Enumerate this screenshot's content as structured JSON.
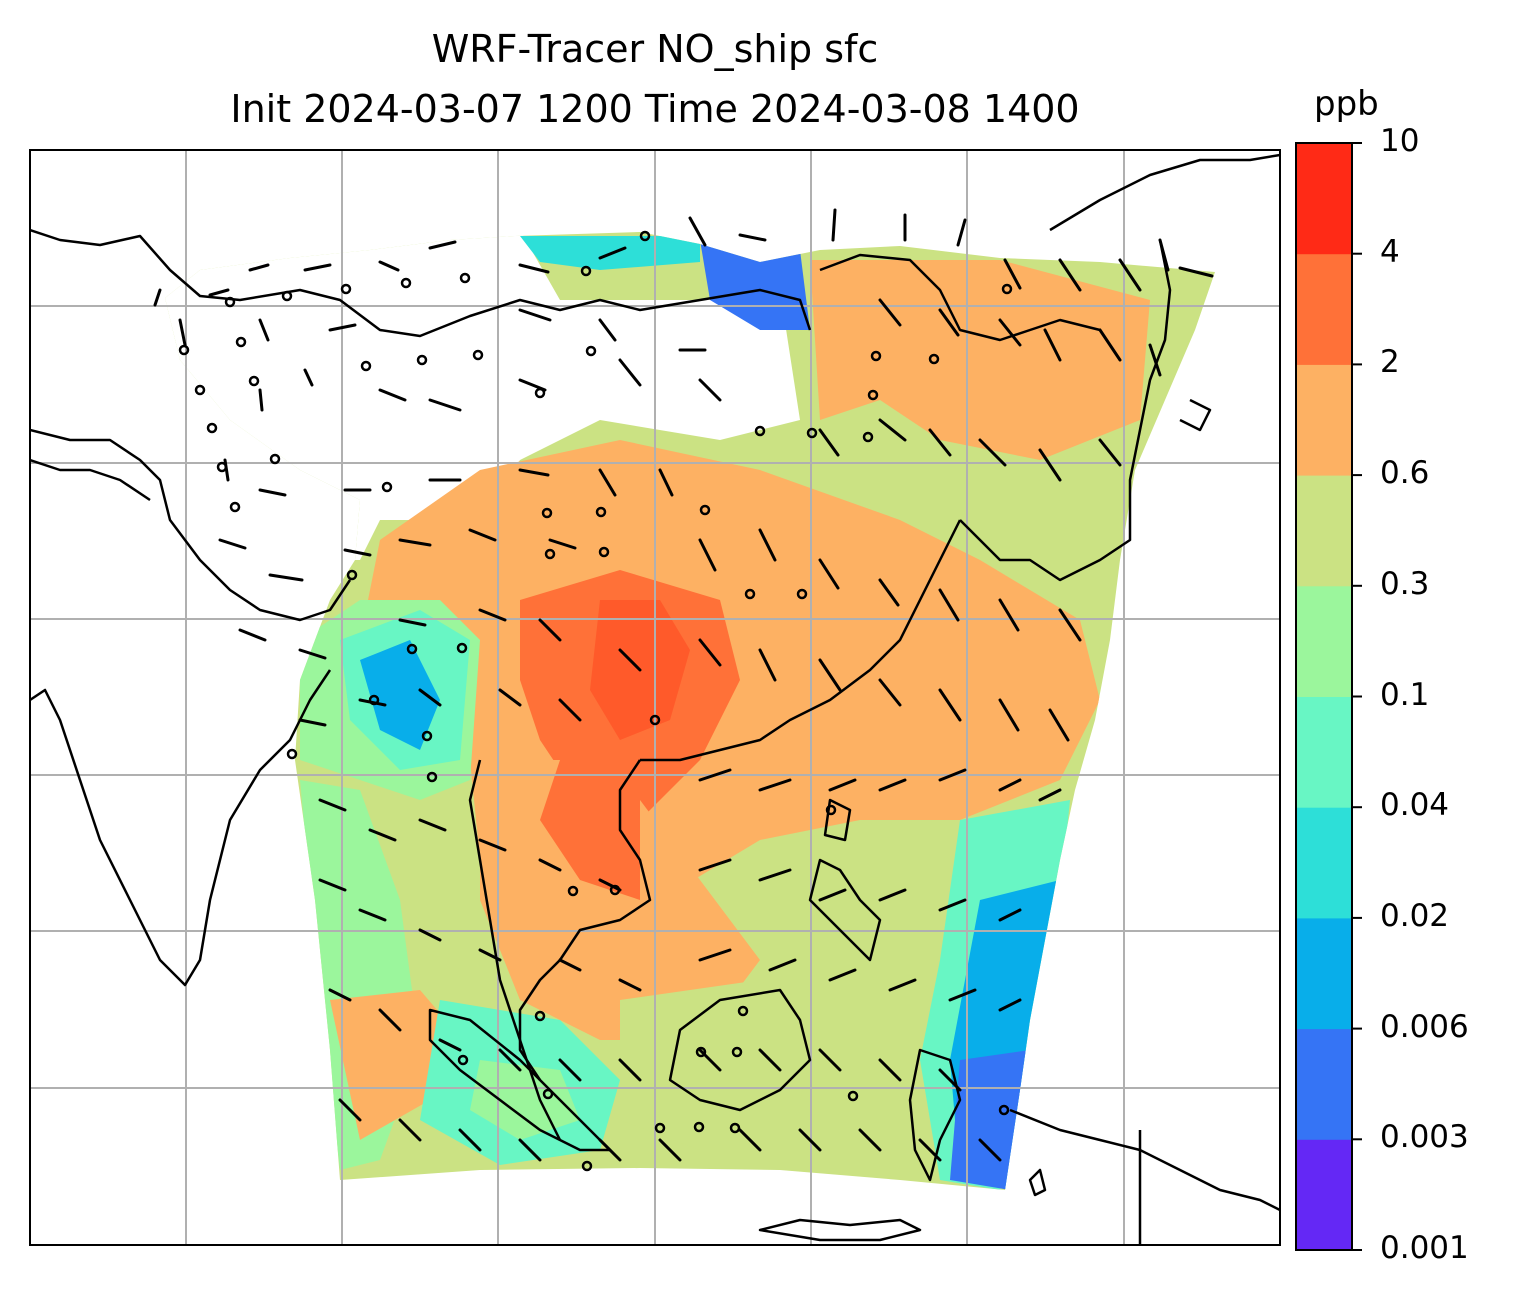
{
  "title_line1": "WRF-Tracer NO_ship sfc",
  "title_line2": "Init 2024-03-07 1200 Time 2024-03-08 1400",
  "colorbar": {
    "unit": "ppb",
    "levels": [
      {
        "label": "0.001",
        "color": "#6428f5"
      },
      {
        "label": "0.003",
        "color": "#3574f5"
      },
      {
        "label": "0.006",
        "color": "#08aeea"
      },
      {
        "label": "0.02",
        "color": "#2ddfd8"
      },
      {
        "label": "0.04",
        "color": "#68f6c4"
      },
      {
        "label": "0.1",
        "color": "#9bf69c"
      },
      {
        "label": "0.3",
        "color": "#cbe283"
      },
      {
        "label": "0.6",
        "color": "#fdb163"
      },
      {
        "label": "2",
        "color": "#ff7138"
      },
      {
        "label": "4",
        "color": "#ff2a16"
      },
      {
        "label": "10",
        "color": "#ff2a16"
      }
    ]
  },
  "colors": {
    "gridline": "#b0b0b0",
    "coastline": "#000000",
    "wind_barb": "#000000"
  }
}
